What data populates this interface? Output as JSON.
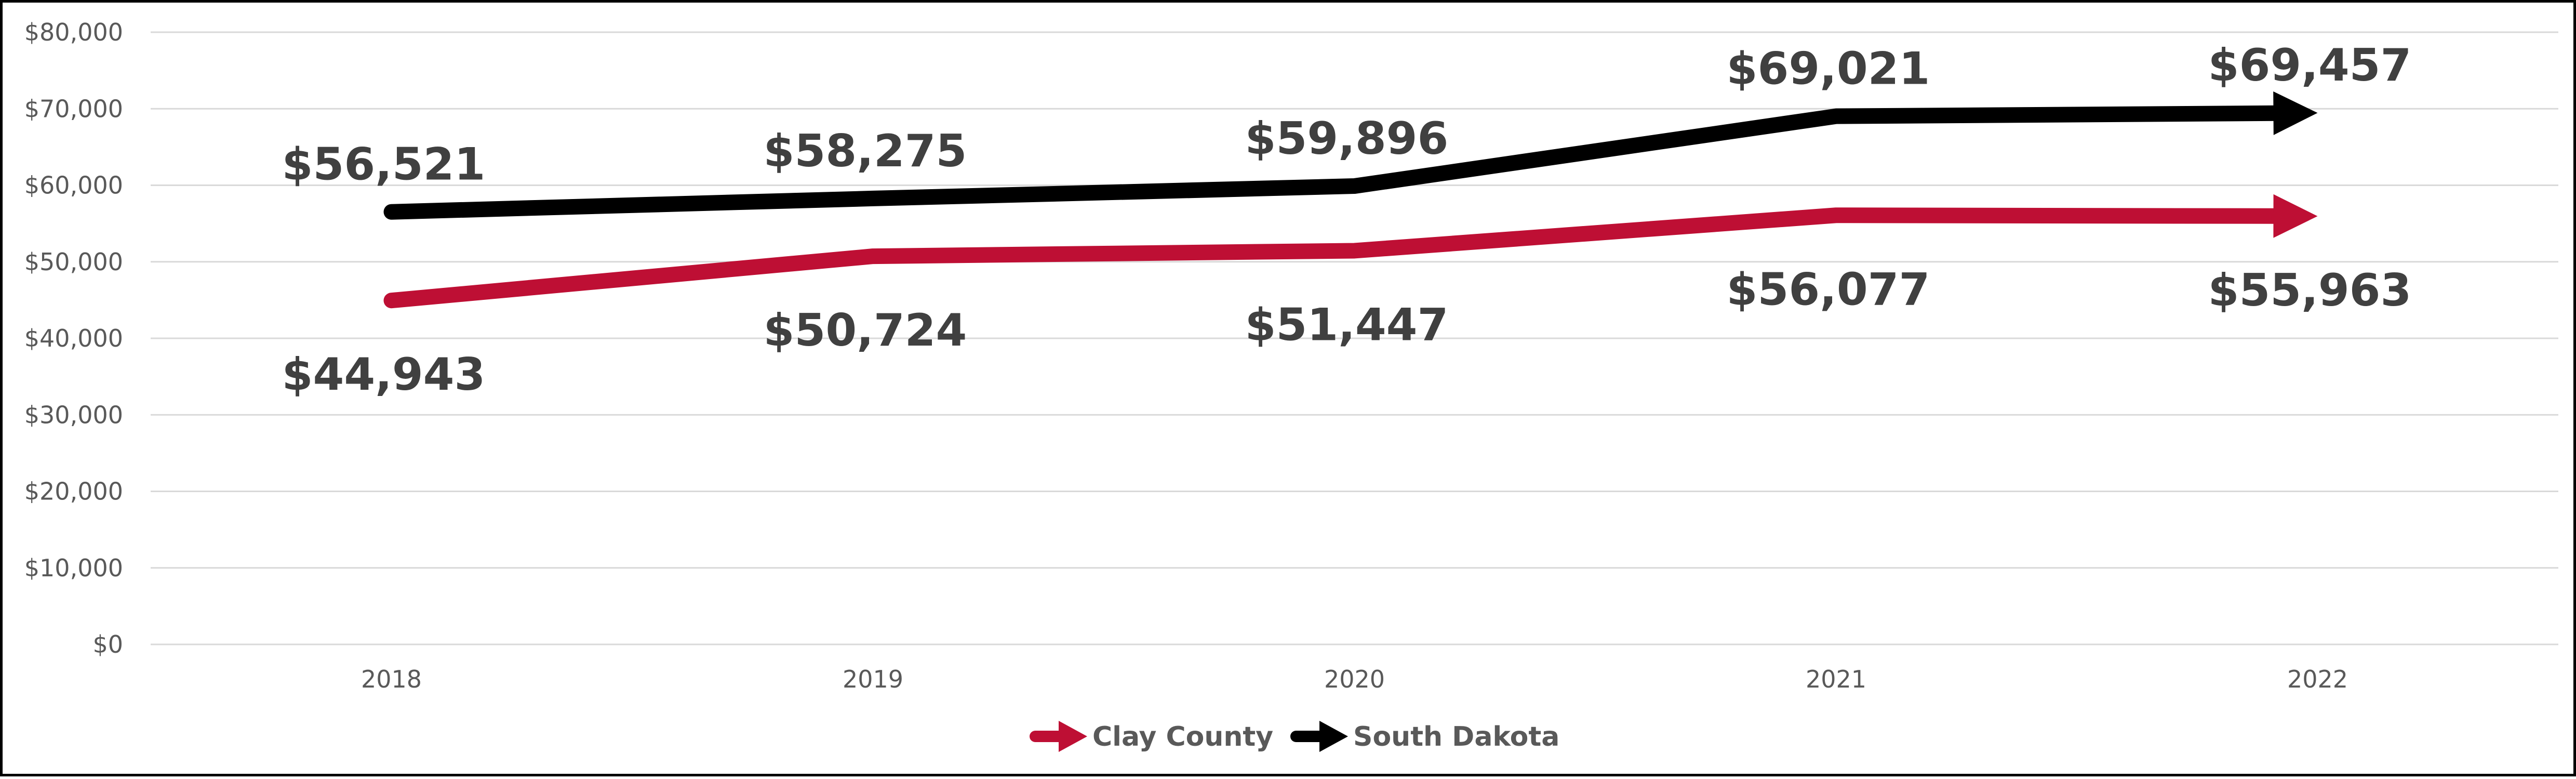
{
  "chart_data": {
    "type": "line",
    "title": "",
    "xlabel": "",
    "ylabel": "",
    "categories": [
      "2018",
      "2019",
      "2020",
      "2021",
      "2022"
    ],
    "ylim": [
      0,
      80000
    ],
    "y_ticks": [
      {
        "value": 0,
        "label": "$0"
      },
      {
        "value": 10000,
        "label": "$10,000"
      },
      {
        "value": 20000,
        "label": "$20,000"
      },
      {
        "value": 30000,
        "label": "$30,000"
      },
      {
        "value": 40000,
        "label": "$40,000"
      },
      {
        "value": 50000,
        "label": "$50,000"
      },
      {
        "value": 60000,
        "label": "$60,000"
      },
      {
        "value": 70000,
        "label": "$70,000"
      },
      {
        "value": 80000,
        "label": "$80,000"
      }
    ],
    "grid": true,
    "legend_position": "bottom",
    "series": [
      {
        "name": "Clay County",
        "color": "#BE0F34",
        "values": [
          44943,
          50724,
          51447,
          56077,
          55963
        ],
        "labels": [
          "$44,943",
          "$50,724",
          "$51,447",
          "$56,077",
          "$55,963"
        ],
        "label_position": "below"
      },
      {
        "name": "South Dakota",
        "color": "#000000",
        "values": [
          56521,
          58275,
          59896,
          69021,
          69457
        ],
        "labels": [
          "$56,521",
          "$58,275",
          "$59,896",
          "$69,021",
          "$69,457"
        ],
        "label_position": "above"
      }
    ]
  }
}
